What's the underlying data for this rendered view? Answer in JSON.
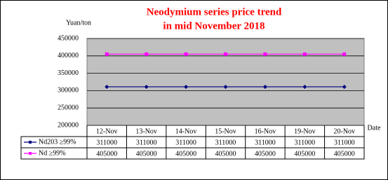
{
  "chart_data": {
    "type": "line",
    "title": [
      "Neodymium series price trend",
      "in mid November 2018"
    ],
    "y_label": "Yuan/ton",
    "x_label": "Date",
    "categories": [
      "12-Nov",
      "13-Nov",
      "14-Nov",
      "15-Nov",
      "16-Nov",
      "19-Nov",
      "20-Nov"
    ],
    "series": [
      {
        "name": "Nd203  ≥99%",
        "color": "#000080",
        "values": [
          311000,
          311000,
          311000,
          311000,
          311000,
          311000,
          311000
        ]
      },
      {
        "name": "Nd  ≥99%",
        "color": "#ff00ff",
        "values": [
          405000,
          405000,
          405000,
          405000,
          405000,
          405000,
          405000
        ]
      }
    ],
    "ylim": [
      200000,
      450000
    ],
    "yticks": [
      200000,
      250000,
      300000,
      350000,
      400000,
      450000
    ],
    "grid": true
  }
}
